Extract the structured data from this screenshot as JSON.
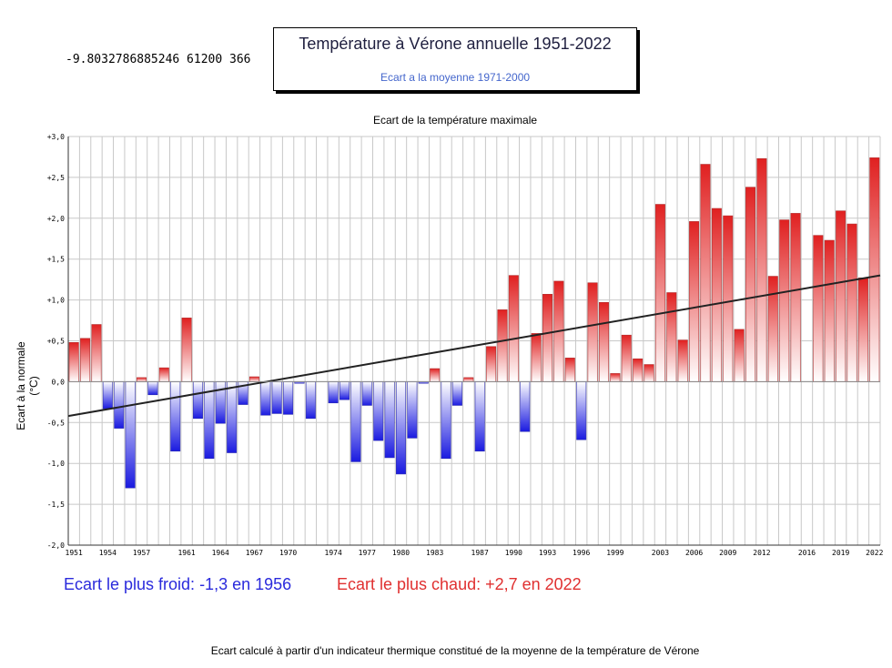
{
  "debug_text": "-9.8032786885246 61200 366",
  "title": "Température à Vérone annuelle 1951-2022",
  "subtitle": "Ecart a la moyenne 1971-2000",
  "chart_title": "Ecart de la température maximale",
  "stats": {
    "coldest": "Ecart le plus froid: -1,3 en 1956",
    "hottest": "Ecart le plus chaud: +2,7 en 2022"
  },
  "footer": "Ecart calculé à partir d'un indicateur thermique constitué de la moyenne de la température de Vérone",
  "colors": {
    "positive": "#e02020",
    "negative": "#1a1ae0",
    "trend": "#222222",
    "grid": "#c8c8c8"
  },
  "chart_data": {
    "type": "bar",
    "ylabel": "Ecart à la normale (°C)",
    "ylim": [
      -2.0,
      3.0
    ],
    "yticks": [
      "+3,0",
      "+2,5",
      "+2,0",
      "+1,5",
      "+1,0",
      "+0,5",
      "0,0",
      "-0,5",
      "-1,0",
      "-1,5",
      "-2,0"
    ],
    "xtick_labels": [
      "1951",
      "1954",
      "1957",
      "1961",
      "1964",
      "1967",
      "1970",
      "1974",
      "1977",
      "1980",
      "1983",
      "1987",
      "1990",
      "1993",
      "1996",
      "1999",
      "2003",
      "2006",
      "2009",
      "2012",
      "2016",
      "2019",
      "2022"
    ],
    "x": [
      1951,
      1952,
      1953,
      1954,
      1955,
      1956,
      1957,
      1958,
      1959,
      1960,
      1961,
      1962,
      1963,
      1964,
      1965,
      1966,
      1967,
      1968,
      1969,
      1970,
      1971,
      1972,
      1973,
      1974,
      1975,
      1976,
      1977,
      1978,
      1979,
      1980,
      1981,
      1982,
      1983,
      1984,
      1985,
      1986,
      1987,
      1988,
      1989,
      1990,
      1991,
      1992,
      1993,
      1994,
      1995,
      1996,
      1997,
      1998,
      1999,
      2000,
      2001,
      2002,
      2003,
      2004,
      2005,
      2006,
      2007,
      2008,
      2009,
      2010,
      2011,
      2012,
      2013,
      2014,
      2015,
      2016,
      2017,
      2018,
      2019,
      2020,
      2021,
      2022
    ],
    "values": [
      0.48,
      0.53,
      0.7,
      -0.33,
      -0.57,
      -1.3,
      0.05,
      -0.16,
      0.17,
      -0.85,
      0.78,
      -0.45,
      -0.94,
      -0.51,
      -0.87,
      -0.28,
      0.06,
      -0.41,
      -0.39,
      -0.4,
      -0.02,
      -0.45,
      null,
      -0.26,
      -0.22,
      -0.98,
      -0.29,
      -0.72,
      -0.93,
      -1.13,
      -0.69,
      -0.02,
      0.16,
      -0.94,
      -0.29,
      0.05,
      -0.85,
      0.43,
      0.88,
      1.3,
      -0.61,
      0.59,
      1.07,
      1.23,
      0.29,
      -0.71,
      1.21,
      0.97,
      0.1,
      0.57,
      0.28,
      0.21,
      2.17,
      1.09,
      0.51,
      1.96,
      2.66,
      2.12,
      2.03,
      0.64,
      2.38,
      2.73,
      1.29,
      1.98,
      2.06,
      null,
      1.79,
      1.73,
      2.09,
      1.93,
      1.27,
      2.74
    ],
    "trend": {
      "start": [
        1951,
        -0.42
      ],
      "end": [
        2022,
        1.3
      ]
    }
  }
}
